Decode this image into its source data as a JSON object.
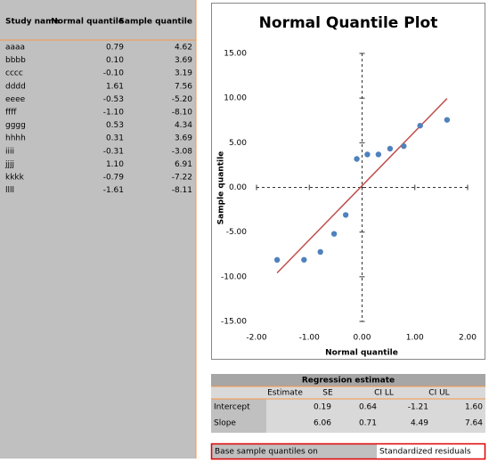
{
  "table": {
    "columns": [
      "Study name",
      "Normal quantile",
      "Sample quantile"
    ],
    "rows": [
      [
        "aaaa",
        "0.79",
        "4.62"
      ],
      [
        "bbbb",
        "0.10",
        "3.69"
      ],
      [
        "cccc",
        "-0.10",
        "3.19"
      ],
      [
        "dddd",
        "1.61",
        "7.56"
      ],
      [
        "eeee",
        "-0.53",
        "-5.20"
      ],
      [
        "ffff",
        "-1.10",
        "-8.10"
      ],
      [
        "gggg",
        "0.53",
        "4.34"
      ],
      [
        "hhhh",
        "0.31",
        "3.69"
      ],
      [
        "iiii",
        "-0.31",
        "-3.08"
      ],
      [
        "jjjj",
        "1.10",
        "6.91"
      ],
      [
        "kkkk",
        "-0.79",
        "-7.22"
      ],
      [
        "llll",
        "-1.61",
        "-8.11"
      ]
    ]
  },
  "chart_data": {
    "type": "scatter",
    "title": "Normal Quantile Plot",
    "x_label": "Normal quantile",
    "y_label": "Sample quantile",
    "x": [
      0.79,
      0.1,
      -0.1,
      1.61,
      -0.53,
      -1.1,
      0.53,
      0.31,
      -0.31,
      1.1,
      -0.79,
      -1.61
    ],
    "y": [
      4.62,
      3.69,
      3.19,
      7.56,
      -5.2,
      -8.1,
      4.34,
      3.69,
      -3.08,
      6.91,
      -7.22,
      -8.11
    ],
    "color": "#4f81bd",
    "regression_line": {
      "intercept": 0.19,
      "slope": 6.06,
      "color": "#c0504d"
    },
    "xlim": [
      -2,
      2
    ],
    "xticks": [
      {
        "value": -2,
        "label": "-2.00"
      },
      {
        "value": -1,
        "label": "-1.00"
      },
      {
        "value": 0,
        "label": "0.00"
      },
      {
        "value": 1,
        "label": "1.00"
      },
      {
        "value": 2,
        "label": "2.00"
      }
    ],
    "ylim": [
      -15,
      15
    ],
    "yticks": [
      {
        "value": -15,
        "label": "-15.00"
      },
      {
        "value": -10,
        "label": "-10.00"
      },
      {
        "value": -5,
        "label": "-5.00"
      },
      {
        "value": 0,
        "label": "0.00"
      },
      {
        "value": 5,
        "label": "5.00"
      },
      {
        "value": 10,
        "label": "10.00"
      },
      {
        "value": 15,
        "label": "15.00"
      }
    ]
  },
  "regression": {
    "title": "Regression estimate",
    "columns": [
      "Estimate",
      "SE",
      "CI LL",
      "CI UL"
    ],
    "rows": [
      [
        "Intercept",
        "0.19",
        "0.64",
        "-1.21",
        "1.60"
      ],
      [
        "Slope",
        "6.06",
        "0.71",
        "4.49",
        "7.64"
      ]
    ]
  },
  "footer": {
    "label": "Base sample quantiles on",
    "value": "Standardized residuals"
  }
}
